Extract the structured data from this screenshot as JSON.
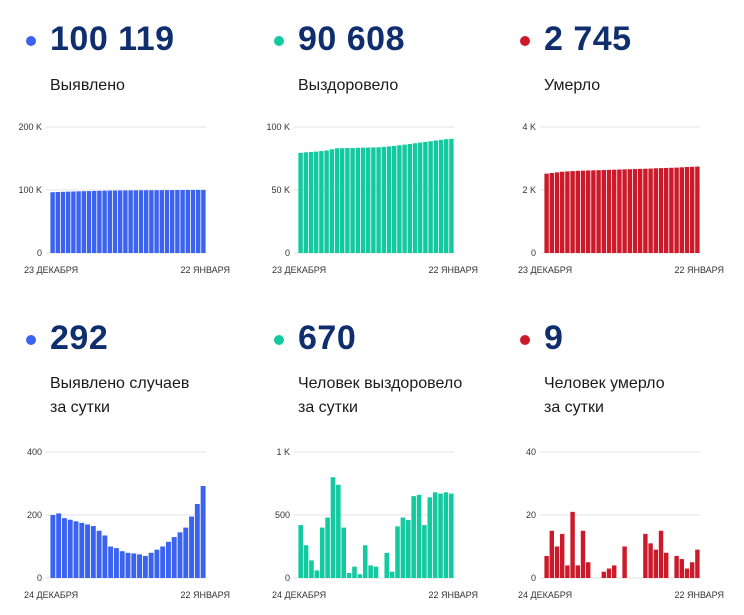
{
  "colors": {
    "blue": "#3b63f0",
    "green": "#13c9a0",
    "red": "#cc1a2a",
    "number": "#0f2e6e"
  },
  "panels": [
    {
      "value": "100 119",
      "label_line1": "Выявлено",
      "label_line2": ""
    },
    {
      "value": "90 608",
      "label_line1": "Выздоровело",
      "label_line2": ""
    },
    {
      "value": "2 745",
      "label_line1": "Умерло",
      "label_line2": ""
    },
    {
      "value": "292",
      "label_line1": "Выявлено случаев",
      "label_line2": "за сутки"
    },
    {
      "value": "670",
      "label_line1": "Человек выздоровело",
      "label_line2": "за сутки"
    },
    {
      "value": "9",
      "label_line1": "Человек умерло",
      "label_line2": "за сутки"
    }
  ],
  "chart_data": [
    {
      "type": "bar",
      "color": "blue",
      "yticks": [
        "0",
        "100 K",
        "200 K"
      ],
      "ylim": [
        0,
        200000
      ],
      "xstart": "23 ДЕКАБРЯ",
      "xend": "22 ЯНВАРЯ",
      "values": [
        96500,
        96800,
        97100,
        97400,
        97600,
        97900,
        98100,
        98300,
        98500,
        98700,
        98900,
        99000,
        99100,
        99200,
        99300,
        99400,
        99500,
        99550,
        99600,
        99650,
        99700,
        99750,
        99800,
        99850,
        99900,
        99950,
        100000,
        100050,
        100100,
        100119
      ]
    },
    {
      "type": "bar",
      "color": "green",
      "yticks": [
        "0",
        "50 K",
        "100 K"
      ],
      "ylim": [
        0,
        100000
      ],
      "xstart": "23 ДЕКАБРЯ",
      "xend": "22 ЯНВАРЯ",
      "values": [
        79500,
        79900,
        80200,
        80500,
        80900,
        81400,
        82300,
        83100,
        83200,
        83300,
        83400,
        83500,
        83600,
        83700,
        83800,
        83900,
        84200,
        84600,
        85000,
        85500,
        86000,
        86500,
        87100,
        87600,
        88200,
        88700,
        89300,
        89800,
        90300,
        90608
      ]
    },
    {
      "type": "bar",
      "color": "red",
      "yticks": [
        "0",
        "2 K",
        "4 K"
      ],
      "ylim": [
        0,
        4000
      ],
      "xstart": "23 ДЕКАБРЯ",
      "xend": "22 ЯНВАРЯ",
      "values": [
        2520,
        2540,
        2560,
        2580,
        2590,
        2600,
        2610,
        2615,
        2620,
        2625,
        2630,
        2635,
        2640,
        2645,
        2650,
        2655,
        2660,
        2665,
        2670,
        2675,
        2680,
        2690,
        2695,
        2700,
        2705,
        2710,
        2720,
        2730,
        2736,
        2745
      ]
    },
    {
      "type": "bar",
      "color": "blue",
      "yticks": [
        "0",
        "200",
        "400"
      ],
      "ylim": [
        0,
        400
      ],
      "xstart": "24 ДЕКАБРЯ",
      "xend": "22 ЯНВАРЯ",
      "values": [
        200,
        205,
        190,
        185,
        180,
        175,
        170,
        165,
        150,
        135,
        100,
        95,
        85,
        80,
        78,
        75,
        70,
        80,
        90,
        100,
        115,
        130,
        145,
        160,
        195,
        235,
        292
      ]
    },
    {
      "type": "bar",
      "color": "green",
      "yticks": [
        "0",
        "500",
        "1 K"
      ],
      "ylim": [
        0,
        1000
      ],
      "xstart": "24 ДЕКАБРЯ",
      "xend": "22 ЯНВАРЯ",
      "values": [
        420,
        260,
        140,
        60,
        400,
        480,
        800,
        740,
        400,
        40,
        90,
        30,
        260,
        100,
        90,
        0,
        200,
        50,
        410,
        480,
        460,
        650,
        660,
        420,
        640,
        680,
        670,
        680,
        670
      ]
    },
    {
      "type": "bar",
      "color": "red",
      "yticks": [
        "0",
        "20",
        "40"
      ],
      "ylim": [
        0,
        40
      ],
      "xstart": "24 ДЕКАБРЯ",
      "xend": "22 ЯНВАРЯ",
      "values": [
        7,
        15,
        10,
        14,
        4,
        21,
        4,
        15,
        5,
        0,
        0,
        2,
        3,
        4,
        0,
        10,
        0,
        0,
        0,
        14,
        11,
        9,
        15,
        8,
        0,
        7,
        6,
        3,
        5,
        9
      ]
    }
  ]
}
